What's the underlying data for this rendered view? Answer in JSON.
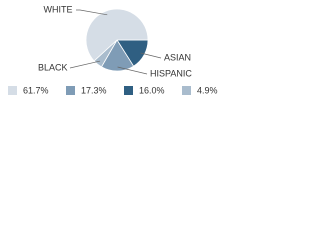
{
  "chart_data": {
    "type": "pie",
    "categories": [
      "WHITE",
      "HISPANIC",
      "ASIAN",
      "BLACK"
    ],
    "values": [
      61.7,
      17.3,
      16.0,
      4.9
    ],
    "value_labels": [
      "61.7%",
      "17.3%",
      "16.0%",
      "4.9%"
    ],
    "colors": [
      "#d5dde6",
      "#7f9cb6",
      "#2f5f82",
      "#a9bccd"
    ]
  }
}
